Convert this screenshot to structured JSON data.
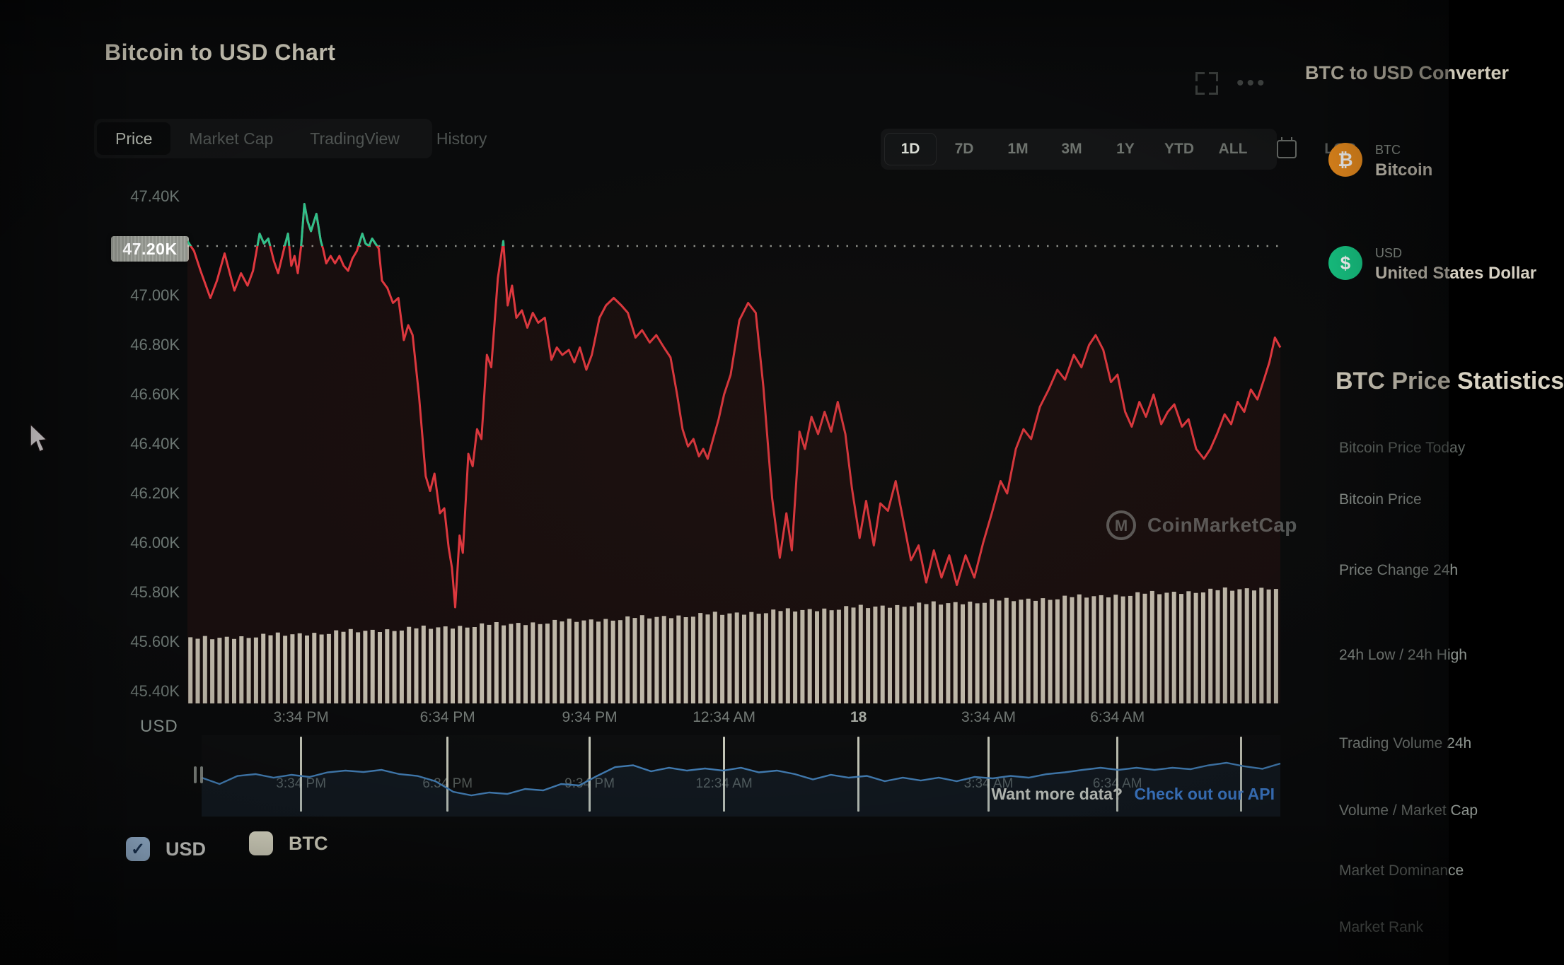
{
  "header": {
    "title": "Bitcoin to USD Chart",
    "tabs": [
      {
        "label": "Price",
        "active": true
      },
      {
        "label": "Market Cap",
        "active": false
      },
      {
        "label": "TradingView",
        "active": false
      },
      {
        "label": "History",
        "active": false
      }
    ],
    "ranges": [
      {
        "label": "1D",
        "active": true
      },
      {
        "label": "7D",
        "active": false
      },
      {
        "label": "1M",
        "active": false
      },
      {
        "label": "3M",
        "active": false
      },
      {
        "label": "1Y",
        "active": false
      },
      {
        "label": "YTD",
        "active": false
      },
      {
        "label": "ALL",
        "active": false
      },
      {
        "label": "calendar-icon",
        "active": false,
        "icon": true
      },
      {
        "label": "LOG",
        "active": false,
        "dim": true
      }
    ]
  },
  "watermark": {
    "text": "CoinMarketCap",
    "logo_glyph": "M"
  },
  "footer": {
    "prompt": "Want more data?",
    "link_label": "Check out our API"
  },
  "legend": [
    {
      "label": "USD",
      "checkbox_color": "#a9c9ea",
      "check_color": "#1c3a5e",
      "checked": true,
      "label_color": "#e8e9e4"
    },
    {
      "label": "BTC",
      "checkbox_color": "#f2f0da",
      "check_color": "#f2f0da",
      "checked": false,
      "label_color": "#efecd8"
    }
  ],
  "sidebar": {
    "converter_heading": "BTC to USD Converter",
    "coins": [
      {
        "symbol": "BTC",
        "name": "Bitcoin",
        "color": "#ef8f1e",
        "glyph": "₿"
      },
      {
        "symbol": "USD",
        "name": "United States Dollar",
        "color": "#17c784",
        "glyph": "$"
      }
    ],
    "stats_heading": "BTC Price Statistics",
    "stats_subheader": "Bitcoin Price Today",
    "stats_rows": [
      "Bitcoin Price",
      "Price Change 24h",
      "24h Low / 24h High",
      "Trading Volume 24h",
      "Volume / Market Cap",
      "Market Dominance",
      "Market Rank"
    ]
  },
  "chart_data": {
    "type": "line",
    "title": "Bitcoin to USD Chart",
    "unit_label": "USD",
    "ylim": [
      45.35,
      47.45
    ],
    "grid": false,
    "legend_position": "bottom-left",
    "yticks": [
      {
        "label": "47.40K",
        "value": 47.4
      },
      {
        "label": "47.20K",
        "value": 47.2
      },
      {
        "label": "47.00K",
        "value": 47.0
      },
      {
        "label": "46.80K",
        "value": 46.8
      },
      {
        "label": "46.60K",
        "value": 46.6
      },
      {
        "label": "46.40K",
        "value": 46.4
      },
      {
        "label": "46.20K",
        "value": 46.2
      },
      {
        "label": "46.00K",
        "value": 46.0
      },
      {
        "label": "45.80K",
        "value": 45.8
      },
      {
        "label": "45.60K",
        "value": 45.6
      },
      {
        "label": "45.40K",
        "value": 45.4
      }
    ],
    "threshold": {
      "value": 47.2,
      "label": "47.20K"
    },
    "xticks": [
      {
        "t": 0.104,
        "label": "3:34 PM",
        "nav_label": "3:34 PM",
        "date": false
      },
      {
        "t": 0.238,
        "label": "6:34 PM",
        "nav_label": "6:34 PM",
        "date": false
      },
      {
        "t": 0.368,
        "label": "9:34 PM",
        "nav_label": "9:34 PM",
        "date": false
      },
      {
        "t": 0.491,
        "label": "12:34 AM",
        "nav_label": "12:34 AM",
        "date": false
      },
      {
        "t": 0.614,
        "label": "18",
        "nav_label": "",
        "date": true
      },
      {
        "t": 0.733,
        "label": "3:34 AM",
        "nav_label": "3:34 AM",
        "date": false
      },
      {
        "t": 0.851,
        "label": "6:34 AM",
        "nav_label": "6:34 AM",
        "date": false
      },
      {
        "t": 0.964,
        "label": "",
        "nav_label": "",
        "date": false
      }
    ],
    "series": [
      {
        "name": "BTC price (USD, thousands)",
        "color_down": "#e0383f",
        "color_up": "#2fc08a",
        "fill": "rgba(210,50,45,0.07)",
        "points": [
          [
            0.0,
            47.22
          ],
          [
            0.006,
            47.18
          ],
          [
            0.012,
            47.1
          ],
          [
            0.021,
            46.99
          ],
          [
            0.027,
            47.06
          ],
          [
            0.034,
            47.17
          ],
          [
            0.043,
            47.02
          ],
          [
            0.049,
            47.09
          ],
          [
            0.055,
            47.04
          ],
          [
            0.06,
            47.1
          ],
          [
            0.066,
            47.25
          ],
          [
            0.07,
            47.21
          ],
          [
            0.074,
            47.23
          ],
          [
            0.079,
            47.14
          ],
          [
            0.083,
            47.09
          ],
          [
            0.089,
            47.2
          ],
          [
            0.092,
            47.25
          ],
          [
            0.095,
            47.12
          ],
          [
            0.098,
            47.16
          ],
          [
            0.101,
            47.09
          ],
          [
            0.104,
            47.2
          ],
          [
            0.107,
            47.37
          ],
          [
            0.11,
            47.3
          ],
          [
            0.113,
            47.26
          ],
          [
            0.118,
            47.33
          ],
          [
            0.122,
            47.22
          ],
          [
            0.124,
            47.19
          ],
          [
            0.127,
            47.13
          ],
          [
            0.131,
            47.16
          ],
          [
            0.135,
            47.13
          ],
          [
            0.139,
            47.16
          ],
          [
            0.143,
            47.12
          ],
          [
            0.147,
            47.1
          ],
          [
            0.151,
            47.15
          ],
          [
            0.155,
            47.18
          ],
          [
            0.16,
            47.25
          ],
          [
            0.163,
            47.21
          ],
          [
            0.166,
            47.2
          ],
          [
            0.169,
            47.23
          ],
          [
            0.172,
            47.21
          ],
          [
            0.175,
            47.19
          ],
          [
            0.178,
            47.06
          ],
          [
            0.183,
            47.03
          ],
          [
            0.188,
            46.97
          ],
          [
            0.193,
            46.99
          ],
          [
            0.198,
            46.82
          ],
          [
            0.202,
            46.88
          ],
          [
            0.206,
            46.84
          ],
          [
            0.212,
            46.59
          ],
          [
            0.218,
            46.27
          ],
          [
            0.222,
            46.21
          ],
          [
            0.226,
            46.28
          ],
          [
            0.231,
            46.12
          ],
          [
            0.235,
            46.14
          ],
          [
            0.239,
            45.98
          ],
          [
            0.242,
            45.9
          ],
          [
            0.245,
            45.74
          ],
          [
            0.249,
            46.03
          ],
          [
            0.252,
            45.96
          ],
          [
            0.257,
            46.36
          ],
          [
            0.261,
            46.31
          ],
          [
            0.265,
            46.46
          ],
          [
            0.269,
            46.42
          ],
          [
            0.274,
            46.76
          ],
          [
            0.278,
            46.71
          ],
          [
            0.284,
            47.07
          ],
          [
            0.289,
            47.22
          ],
          [
            0.293,
            46.96
          ],
          [
            0.297,
            47.04
          ],
          [
            0.301,
            46.91
          ],
          [
            0.306,
            46.94
          ],
          [
            0.311,
            46.87
          ],
          [
            0.316,
            46.93
          ],
          [
            0.321,
            46.89
          ],
          [
            0.327,
            46.91
          ],
          [
            0.333,
            46.74
          ],
          [
            0.338,
            46.79
          ],
          [
            0.343,
            46.76
          ],
          [
            0.349,
            46.78
          ],
          [
            0.354,
            46.73
          ],
          [
            0.359,
            46.79
          ],
          [
            0.365,
            46.7
          ],
          [
            0.37,
            46.76
          ],
          [
            0.377,
            46.91
          ],
          [
            0.383,
            46.96
          ],
          [
            0.39,
            46.99
          ],
          [
            0.397,
            46.96
          ],
          [
            0.403,
            46.93
          ],
          [
            0.41,
            46.83
          ],
          [
            0.416,
            46.86
          ],
          [
            0.423,
            46.81
          ],
          [
            0.429,
            46.84
          ],
          [
            0.436,
            46.79
          ],
          [
            0.442,
            46.75
          ],
          [
            0.448,
            46.6
          ],
          [
            0.453,
            46.46
          ],
          [
            0.458,
            46.39
          ],
          [
            0.463,
            46.42
          ],
          [
            0.468,
            46.35
          ],
          [
            0.472,
            46.38
          ],
          [
            0.476,
            46.34
          ],
          [
            0.481,
            46.42
          ],
          [
            0.486,
            46.5
          ],
          [
            0.491,
            46.6
          ],
          [
            0.497,
            46.68
          ],
          [
            0.505,
            46.9
          ],
          [
            0.513,
            46.97
          ],
          [
            0.52,
            46.93
          ],
          [
            0.527,
            46.63
          ],
          [
            0.535,
            46.18
          ],
          [
            0.542,
            45.94
          ],
          [
            0.548,
            46.12
          ],
          [
            0.553,
            45.97
          ],
          [
            0.56,
            46.45
          ],
          [
            0.565,
            46.38
          ],
          [
            0.571,
            46.51
          ],
          [
            0.577,
            46.44
          ],
          [
            0.583,
            46.53
          ],
          [
            0.589,
            46.45
          ],
          [
            0.595,
            46.57
          ],
          [
            0.602,
            46.44
          ],
          [
            0.608,
            46.22
          ],
          [
            0.615,
            46.02
          ],
          [
            0.621,
            46.17
          ],
          [
            0.628,
            45.99
          ],
          [
            0.634,
            46.16
          ],
          [
            0.641,
            46.13
          ],
          [
            0.648,
            46.25
          ],
          [
            0.655,
            46.09
          ],
          [
            0.662,
            45.93
          ],
          [
            0.669,
            45.99
          ],
          [
            0.676,
            45.84
          ],
          [
            0.683,
            45.97
          ],
          [
            0.69,
            45.86
          ],
          [
            0.697,
            45.95
          ],
          [
            0.704,
            45.83
          ],
          [
            0.712,
            45.95
          ],
          [
            0.72,
            45.86
          ],
          [
            0.728,
            46.0
          ],
          [
            0.736,
            46.12
          ],
          [
            0.744,
            46.25
          ],
          [
            0.75,
            46.2
          ],
          [
            0.758,
            46.38
          ],
          [
            0.765,
            46.46
          ],
          [
            0.772,
            46.42
          ],
          [
            0.78,
            46.55
          ],
          [
            0.788,
            46.62
          ],
          [
            0.796,
            46.7
          ],
          [
            0.803,
            46.66
          ],
          [
            0.811,
            46.76
          ],
          [
            0.818,
            46.71
          ],
          [
            0.825,
            46.8
          ],
          [
            0.831,
            46.84
          ],
          [
            0.838,
            46.78
          ],
          [
            0.845,
            46.65
          ],
          [
            0.851,
            46.68
          ],
          [
            0.858,
            46.53
          ],
          [
            0.864,
            46.47
          ],
          [
            0.871,
            46.57
          ],
          [
            0.877,
            46.51
          ],
          [
            0.884,
            46.6
          ],
          [
            0.891,
            46.48
          ],
          [
            0.897,
            46.53
          ],
          [
            0.903,
            46.56
          ],
          [
            0.91,
            46.47
          ],
          [
            0.916,
            46.5
          ],
          [
            0.923,
            46.38
          ],
          [
            0.93,
            46.34
          ],
          [
            0.936,
            46.38
          ],
          [
            0.942,
            46.44
          ],
          [
            0.949,
            46.52
          ],
          [
            0.955,
            46.48
          ],
          [
            0.961,
            46.57
          ],
          [
            0.967,
            46.53
          ],
          [
            0.973,
            46.62
          ],
          [
            0.979,
            46.58
          ],
          [
            0.985,
            46.66
          ],
          [
            0.99,
            46.73
          ],
          [
            0.995,
            46.83
          ],
          [
            1.0,
            46.79
          ]
        ]
      }
    ],
    "volume": {
      "name": "volume bars",
      "color": "#e8ebd9",
      "baseline": 45.355,
      "tops": [
        45.619,
        45.613,
        45.624,
        45.611,
        45.617,
        45.621,
        45.612,
        45.623,
        45.616,
        45.618,
        45.633,
        45.627,
        45.638,
        45.625,
        45.631,
        45.635,
        45.626,
        45.637,
        45.63,
        45.632,
        45.647,
        45.641,
        45.652,
        45.639,
        45.645,
        45.649,
        45.64,
        45.651,
        45.644,
        45.646,
        45.661,
        45.655,
        45.666,
        45.653,
        45.659,
        45.663,
        45.654,
        45.665,
        45.658,
        45.66,
        45.675,
        45.669,
        45.68,
        45.667,
        45.673,
        45.677,
        45.668,
        45.679,
        45.672,
        45.674,
        45.689,
        45.683,
        45.694,
        45.681,
        45.687,
        45.691,
        45.682,
        45.693,
        45.686,
        45.688,
        45.703,
        45.697,
        45.708,
        45.695,
        45.701,
        45.705,
        45.696,
        45.707,
        45.7,
        45.702,
        45.717,
        45.711,
        45.722,
        45.709,
        45.715,
        45.719,
        45.71,
        45.721,
        45.714,
        45.716,
        45.731,
        45.725,
        45.736,
        45.723,
        45.729,
        45.733,
        45.724,
        45.735,
        45.728,
        45.73,
        45.745,
        45.739,
        45.75,
        45.737,
        45.743,
        45.747,
        45.738,
        45.749,
        45.742,
        45.744,
        45.759,
        45.753,
        45.764,
        45.751,
        45.757,
        45.761,
        45.752,
        45.763,
        45.756,
        45.758,
        45.773,
        45.767,
        45.778,
        45.765,
        45.771,
        45.775,
        45.766,
        45.777,
        45.77,
        45.772,
        45.787,
        45.781,
        45.792,
        45.779,
        45.785,
        45.789,
        45.78,
        45.791,
        45.784,
        45.786,
        45.801,
        45.795,
        45.806,
        45.793,
        45.799,
        45.803,
        45.794,
        45.805,
        45.798,
        45.8,
        45.815,
        45.809,
        45.82,
        45.807,
        45.813,
        45.817,
        45.808,
        45.819,
        45.812,
        45.814
      ]
    },
    "navigator": {
      "name": "navigator series",
      "color": "#4480b8",
      "values": [
        0.5,
        0.68,
        0.45,
        0.4,
        0.5,
        0.42,
        0.48,
        0.35,
        0.3,
        0.34,
        0.28,
        0.4,
        0.45,
        0.6,
        0.9,
        1.0,
        0.92,
        0.96,
        0.82,
        0.86,
        0.68,
        0.72,
        0.45,
        0.2,
        0.15,
        0.32,
        0.22,
        0.3,
        0.24,
        0.3,
        0.22,
        0.35,
        0.3,
        0.4,
        0.55,
        0.42,
        0.5,
        0.45,
        0.6,
        0.5,
        0.58,
        0.5,
        0.6,
        0.48,
        0.52,
        0.45,
        0.5,
        0.4,
        0.35,
        0.28,
        0.22,
        0.28,
        0.22,
        0.28,
        0.22,
        0.26,
        0.15,
        0.08,
        0.18,
        0.25,
        0.1
      ]
    }
  }
}
